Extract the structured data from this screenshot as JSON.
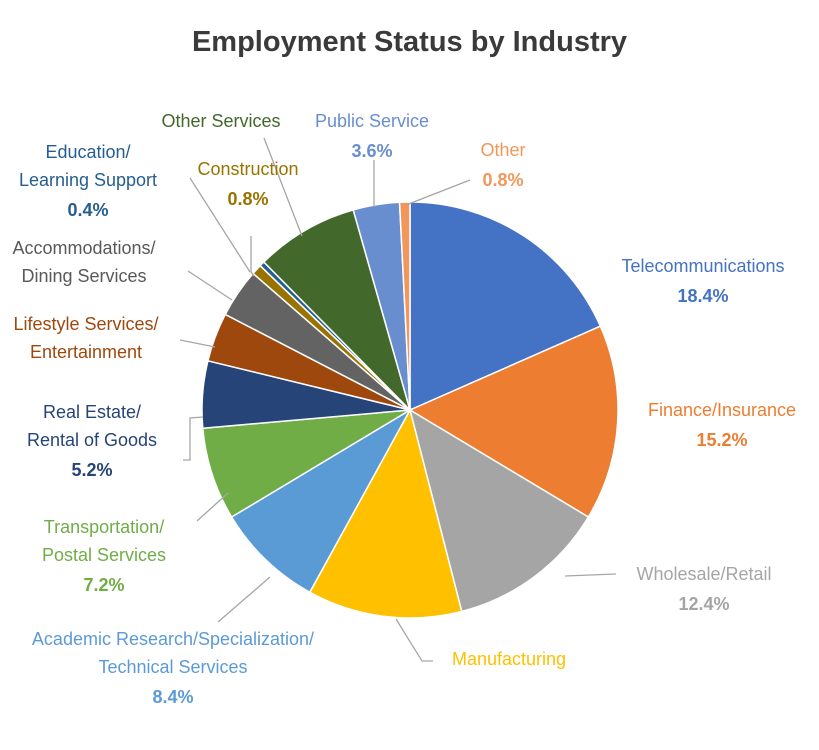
{
  "chart_data": {
    "type": "pie",
    "title": "Employment Status by Industry",
    "start_angle_deg": 0,
    "direction": "clockwise",
    "slices": [
      {
        "label": "Telecommunications",
        "value": 18.4,
        "value_label": "18.4%",
        "color": "#4472C4",
        "text_color": "#4472C4"
      },
      {
        "label": "Finance/Insurance",
        "value": 15.2,
        "value_label": "15.2%",
        "color": "#ED7D31",
        "text_color": "#ED7D31"
      },
      {
        "label": "Wholesale/Retail",
        "value": 12.4,
        "value_label": "12.4%",
        "color": "#A5A5A5",
        "text_color": "#A5A5A5"
      },
      {
        "label": "Manufacturing",
        "value": 12.0,
        "value_label": "",
        "color": "#FFC000",
        "text_color": "#FFC000"
      },
      {
        "label": "Academic Research/Specialization/\nTechnical Services",
        "value": 8.4,
        "value_label": "8.4%",
        "color": "#5B9BD5",
        "text_color": "#5B9BD5"
      },
      {
        "label": "Transportation/\nPostal Services",
        "value": 7.2,
        "value_label": "7.2%",
        "color": "#70AD47",
        "text_color": "#70AD47"
      },
      {
        "label": "Real Estate/\nRental of Goods",
        "value": 5.2,
        "value_label": "5.2%",
        "color": "#264478",
        "text_color": "#264478"
      },
      {
        "label": "Lifestyle Services/\nEntertainment",
        "value": 3.8,
        "value_label": "",
        "color": "#9E480E",
        "text_color": "#9E480E"
      },
      {
        "label": "Accommodations/\nDining Services",
        "value": 3.8,
        "value_label": "",
        "color": "#636363",
        "text_color": "#595959"
      },
      {
        "label": "Construction",
        "value": 0.8,
        "value_label": "0.8%",
        "color": "#997300",
        "text_color": "#997300"
      },
      {
        "label": "Education/\nLearning Support",
        "value": 0.4,
        "value_label": "0.4%",
        "color": "#255E91",
        "text_color": "#255E91"
      },
      {
        "label": "Other Services",
        "value": 8.0,
        "value_label": "",
        "color": "#43682B",
        "text_color": "#43682B"
      },
      {
        "label": "Public Service",
        "value": 3.6,
        "value_label": "3.6%",
        "color": "#698ED0",
        "text_color": "#698ED0"
      },
      {
        "label": "Other",
        "value": 0.8,
        "value_label": "0.8%",
        "color": "#F1975A",
        "text_color": "#F1975A"
      }
    ]
  }
}
